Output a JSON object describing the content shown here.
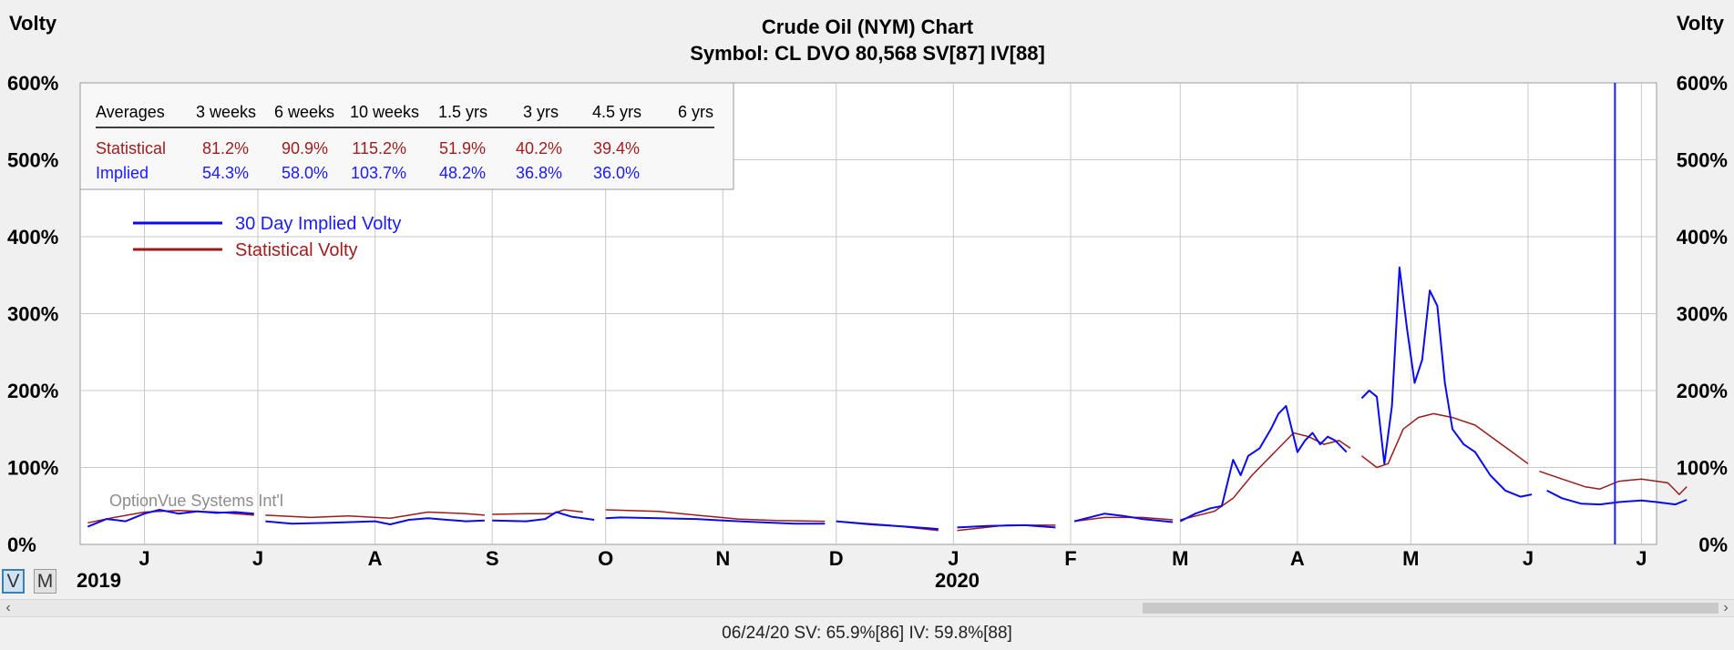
{
  "title": "Crude Oil (NYM) Chart",
  "subtitle": "Symbol: CL  DVO 80,568  SV[87]  IV[88]",
  "left_axis_title": "Volty",
  "right_axis_title": "Volty",
  "averages_table": {
    "headers": [
      "Averages",
      "3 weeks",
      "6 weeks",
      "10 weeks",
      "1.5 yrs",
      "3 yrs",
      "4.5 yrs",
      "6 yrs"
    ],
    "rows": [
      {
        "label": "Statistical",
        "values": [
          "81.2%",
          "90.9%",
          "115.2%",
          "51.9%",
          "40.2%",
          "39.4%",
          ""
        ],
        "color": "#a11d1d"
      },
      {
        "label": "Implied",
        "values": [
          "54.3%",
          "58.0%",
          "103.7%",
          "48.2%",
          "36.8%",
          "36.0%",
          ""
        ],
        "color": "#1a1aff"
      }
    ]
  },
  "watermark": "OptionVue Systems Int'l",
  "mode_buttons": [
    "V",
    "M"
  ],
  "year_labels": [
    "2019",
    "2020"
  ],
  "status": "06/24/20  SV: 65.9%[86]  IV: 59.8%[88]",
  "chart_data": {
    "type": "line",
    "title": "Crude Oil (NYM) Chart",
    "subtitle": "Symbol: CL  DVO 80,568  SV[87]  IV[88]",
    "ylabel": "Volty",
    "ylim": [
      0,
      600
    ],
    "y_ticks": [
      "0%",
      "100%",
      "200%",
      "300%",
      "400%",
      "500%",
      "600%"
    ],
    "x_ticks": [
      "J",
      "J",
      "A",
      "S",
      "O",
      "N",
      "D",
      "J",
      "F",
      "M",
      "A",
      "M",
      "J",
      "J"
    ],
    "x_tick_dates": [
      "2019-06-01",
      "2019-07-01",
      "2019-08-01",
      "2019-09-01",
      "2019-10-01",
      "2019-11-01",
      "2019-12-01",
      "2020-01-01",
      "2020-02-01",
      "2020-03-01",
      "2020-04-01",
      "2020-05-01",
      "2020-06-01",
      "2020-07-01"
    ],
    "xlim": [
      "2019-05-15",
      "2020-07-05"
    ],
    "grid": true,
    "legend_position": "top-left",
    "cursor_date": "2020-06-24",
    "series": [
      {
        "name": "30 Day Implied Volty",
        "color": "#0a0aee",
        "segments": [
          [
            [
              "2019-05-17",
              23
            ],
            [
              "2019-05-22",
              33
            ],
            [
              "2019-05-27",
              30
            ],
            [
              "2019-06-01",
              40
            ],
            [
              "2019-06-05",
              45
            ],
            [
              "2019-06-10",
              40
            ],
            [
              "2019-06-15",
              43
            ],
            [
              "2019-06-20",
              41
            ],
            [
              "2019-06-25",
              42
            ],
            [
              "2019-06-30",
              40
            ]
          ],
          [
            [
              "2019-07-03",
              30
            ],
            [
              "2019-07-10",
              27
            ],
            [
              "2019-07-20",
              28
            ],
            [
              "2019-08-01",
              30
            ],
            [
              "2019-08-05",
              26
            ],
            [
              "2019-08-10",
              32
            ],
            [
              "2019-08-15",
              34
            ],
            [
              "2019-08-20",
              32
            ],
            [
              "2019-08-25",
              30
            ],
            [
              "2019-08-30",
              31
            ]
          ],
          [
            [
              "2019-09-01",
              31
            ],
            [
              "2019-09-10",
              30
            ],
            [
              "2019-09-15",
              33
            ],
            [
              "2019-09-18",
              42
            ],
            [
              "2019-09-22",
              36
            ],
            [
              "2019-09-28",
              32
            ]
          ],
          [
            [
              "2019-10-01",
              34
            ],
            [
              "2019-10-05",
              35
            ],
            [
              "2019-10-15",
              34
            ],
            [
              "2019-10-25",
              33
            ],
            [
              "2019-11-01",
              31
            ],
            [
              "2019-11-10",
              29
            ],
            [
              "2019-11-20",
              27
            ],
            [
              "2019-11-28",
              27
            ]
          ],
          [
            [
              "2019-12-01",
              30
            ],
            [
              "2019-12-10",
              26
            ],
            [
              "2019-12-20",
              23
            ],
            [
              "2019-12-28",
              20
            ]
          ],
          [
            [
              "2020-01-02",
              22
            ],
            [
              "2020-01-10",
              24
            ],
            [
              "2020-01-20",
              25
            ],
            [
              "2020-01-28",
              22
            ]
          ],
          [
            [
              "2020-02-02",
              30
            ],
            [
              "2020-02-10",
              40
            ],
            [
              "2020-02-15",
              37
            ],
            [
              "2020-02-20",
              33
            ],
            [
              "2020-02-28",
              29
            ]
          ],
          [
            [
              "2020-03-01",
              30
            ],
            [
              "2020-03-05",
              40
            ],
            [
              "2020-03-09",
              47
            ],
            [
              "2020-03-12",
              50
            ],
            [
              "2020-03-15",
              110
            ],
            [
              "2020-03-17",
              90
            ],
            [
              "2020-03-19",
              115
            ],
            [
              "2020-03-22",
              125
            ],
            [
              "2020-03-25",
              150
            ],
            [
              "2020-03-27",
              170
            ],
            [
              "2020-03-29",
              180
            ],
            [
              "2020-04-01",
              120
            ],
            [
              "2020-04-03",
              135
            ],
            [
              "2020-04-05",
              145
            ],
            [
              "2020-04-07",
              130
            ],
            [
              "2020-04-09",
              140
            ],
            [
              "2020-04-11",
              135
            ],
            [
              "2020-04-14",
              120
            ]
          ],
          [
            [
              "2020-04-18",
              190
            ],
            [
              "2020-04-20",
              200
            ],
            [
              "2020-04-22",
              192
            ],
            [
              "2020-04-24",
              105
            ],
            [
              "2020-04-26",
              180
            ],
            [
              "2020-04-28",
              360
            ],
            [
              "2020-04-30",
              280
            ],
            [
              "2020-05-02",
              210
            ],
            [
              "2020-05-04",
              240
            ],
            [
              "2020-05-06",
              330
            ],
            [
              "2020-05-08",
              310
            ],
            [
              "2020-05-10",
              210
            ],
            [
              "2020-05-12",
              150
            ],
            [
              "2020-05-15",
              130
            ],
            [
              "2020-05-18",
              120
            ],
            [
              "2020-05-22",
              90
            ],
            [
              "2020-05-26",
              70
            ],
            [
              "2020-05-30",
              62
            ],
            [
              "2020-06-02",
              65
            ]
          ],
          [
            [
              "2020-06-06",
              70
            ],
            [
              "2020-06-10",
              60
            ],
            [
              "2020-06-15",
              53
            ],
            [
              "2020-06-20",
              52
            ],
            [
              "2020-06-25",
              55
            ],
            [
              "2020-07-01",
              57
            ],
            [
              "2020-07-05",
              55
            ],
            [
              "2020-07-10",
              52
            ],
            [
              "2020-07-13",
              58
            ]
          ]
        ]
      },
      {
        "name": "Statistical Volty",
        "color": "#9b1b1b",
        "segments": [
          [
            [
              "2019-05-17",
              28
            ],
            [
              "2019-05-24",
              35
            ],
            [
              "2019-06-01",
              42
            ],
            [
              "2019-06-10",
              44
            ],
            [
              "2019-06-20",
              42
            ],
            [
              "2019-06-30",
              38
            ]
          ],
          [
            [
              "2019-07-03",
              38
            ],
            [
              "2019-07-15",
              35
            ],
            [
              "2019-07-25",
              37
            ],
            [
              "2019-08-05",
              34
            ],
            [
              "2019-08-15",
              42
            ],
            [
              "2019-08-25",
              40
            ],
            [
              "2019-08-30",
              38
            ]
          ],
          [
            [
              "2019-09-01",
              39
            ],
            [
              "2019-09-10",
              40
            ],
            [
              "2019-09-17",
              40
            ],
            [
              "2019-09-20",
              45
            ],
            [
              "2019-09-25",
              42
            ]
          ],
          [
            [
              "2019-10-01",
              45
            ],
            [
              "2019-10-15",
              43
            ],
            [
              "2019-10-25",
              38
            ],
            [
              "2019-11-05",
              33
            ],
            [
              "2019-11-15",
              31
            ],
            [
              "2019-11-28",
              30
            ]
          ],
          [
            [
              "2019-12-01",
              30
            ],
            [
              "2019-12-15",
              25
            ],
            [
              "2019-12-28",
              18
            ]
          ],
          [
            [
              "2020-01-02",
              18
            ],
            [
              "2020-01-15",
              25
            ],
            [
              "2020-01-28",
              25
            ]
          ],
          [
            [
              "2020-02-02",
              30
            ],
            [
              "2020-02-10",
              35
            ],
            [
              "2020-02-20",
              35
            ],
            [
              "2020-02-28",
              32
            ]
          ],
          [
            [
              "2020-03-01",
              32
            ],
            [
              "2020-03-10",
              43
            ],
            [
              "2020-03-15",
              60
            ],
            [
              "2020-03-20",
              90
            ],
            [
              "2020-03-26",
              120
            ],
            [
              "2020-03-31",
              145
            ],
            [
              "2020-04-04",
              140
            ],
            [
              "2020-04-08",
              130
            ],
            [
              "2020-04-12",
              135
            ],
            [
              "2020-04-15",
              125
            ]
          ],
          [
            [
              "2020-04-18",
              115
            ],
            [
              "2020-04-22",
              100
            ],
            [
              "2020-04-25",
              105
            ],
            [
              "2020-04-29",
              150
            ],
            [
              "2020-05-03",
              165
            ],
            [
              "2020-05-07",
              170
            ],
            [
              "2020-05-12",
              165
            ],
            [
              "2020-05-18",
              155
            ],
            [
              "2020-05-25",
              130
            ],
            [
              "2020-06-01",
              105
            ]
          ],
          [
            [
              "2020-06-04",
              95
            ],
            [
              "2020-06-10",
              85
            ],
            [
              "2020-06-16",
              75
            ],
            [
              "2020-06-20",
              72
            ],
            [
              "2020-06-25",
              82
            ],
            [
              "2020-07-01",
              85
            ],
            [
              "2020-07-08",
              80
            ],
            [
              "2020-07-11",
              65
            ],
            [
              "2020-07-13",
              75
            ]
          ]
        ]
      }
    ]
  }
}
